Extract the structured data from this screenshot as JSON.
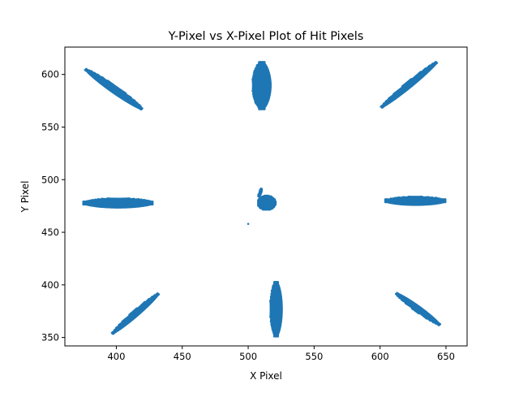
{
  "chart_data": {
    "type": "scatter",
    "title": "Y-Pixel vs X-Pixel Plot of Hit Pixels",
    "xlabel": "X Pixel",
    "ylabel": "Y Pixel",
    "xlim": [
      361,
      666
    ],
    "ylim": [
      626,
      342
    ],
    "y_inverted": true,
    "grid": false,
    "xticks": [
      400,
      450,
      500,
      550,
      600,
      650
    ],
    "yticks": [
      350,
      400,
      450,
      500,
      550,
      600
    ],
    "series": [
      {
        "color": "#1f77b4",
        "marker": "point",
        "clusters": [
          {
            "id": "upper-left-streak",
            "shape": "streak",
            "from": [
              397,
              354
            ],
            "to": [
              432,
              392
            ],
            "width": 5
          },
          {
            "id": "upper-center-streak",
            "shape": "streak",
            "from": [
              521,
              351
            ],
            "to": [
              521,
              403
            ],
            "width": 9
          },
          {
            "id": "upper-right-streak",
            "shape": "streak",
            "from": [
              645,
              362
            ],
            "to": [
              612,
              392
            ],
            "width": 5
          },
          {
            "id": "middle-left-streak",
            "shape": "streak",
            "from": [
              375,
              478
            ],
            "to": [
              428,
              478
            ],
            "width": 9
          },
          {
            "id": "middle-right-streak",
            "shape": "streak",
            "from": [
              604,
              480
            ],
            "to": [
              650,
              480
            ],
            "width": 8
          },
          {
            "id": "lower-left-streak",
            "shape": "streak",
            "from": [
              377,
              605
            ],
            "to": [
              420,
              567
            ],
            "width": 6
          },
          {
            "id": "lower-center-streak",
            "shape": "streak",
            "from": [
              510,
              567
            ],
            "to": [
              510,
              612
            ],
            "width": 14
          },
          {
            "id": "lower-right-streak",
            "shape": "streak",
            "from": [
              601,
              569
            ],
            "to": [
              643,
              612
            ],
            "width": 5
          },
          {
            "id": "center-blob",
            "shape": "blob",
            "center": [
              514,
              478
            ],
            "radius": [
              7,
              7
            ]
          },
          {
            "id": "center-tail",
            "shape": "streak",
            "from": [
              508,
              484
            ],
            "to": [
              510,
              492
            ],
            "width": 2
          },
          {
            "id": "isolated-hit",
            "shape": "point",
            "center": [
              500,
              458
            ]
          }
        ]
      }
    ]
  }
}
